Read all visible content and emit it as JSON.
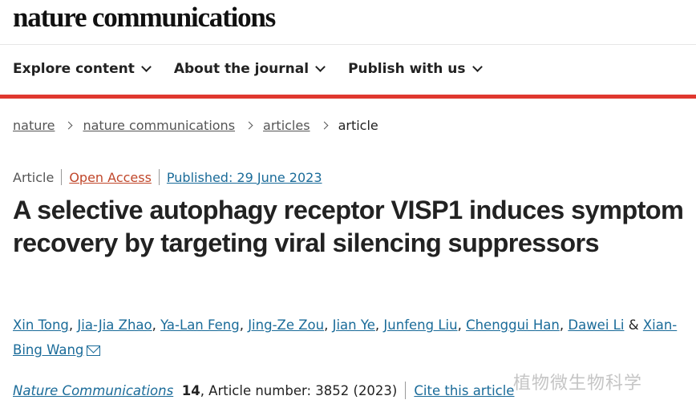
{
  "header": {
    "logo": "nature communications"
  },
  "nav": {
    "items": [
      {
        "label": "Explore content"
      },
      {
        "label": "About the journal"
      },
      {
        "label": "Publish with us"
      }
    ]
  },
  "colors": {
    "accent_bar": "#e0382f",
    "link": "#1a6b99",
    "open_access": "#c0472b"
  },
  "breadcrumb": {
    "items": [
      "nature",
      "nature communications",
      "articles"
    ],
    "current": "article"
  },
  "meta": {
    "type": "Article",
    "access": "Open Access",
    "published": "Published: 29 June 2023"
  },
  "article": {
    "title": "A selective autophagy receptor VISP1 induces symptom recovery by targeting viral silencing suppressors",
    "authors": [
      "Xin Tong",
      "Jia-Jia Zhao",
      "Ya-Lan Feng",
      "Jing-Ze Zou",
      "Jian Ye",
      "Junfeng Liu",
      "Chenggui Han",
      "Dawei Li"
    ],
    "last_author": "Xian-Bing Wang",
    "and": "&",
    "journal": "Nature Communications",
    "volume": "14",
    "article_number": ", Article number: 3852 (2023)",
    "cite_label": "Cite this article"
  },
  "watermark": "植物微生物科学"
}
